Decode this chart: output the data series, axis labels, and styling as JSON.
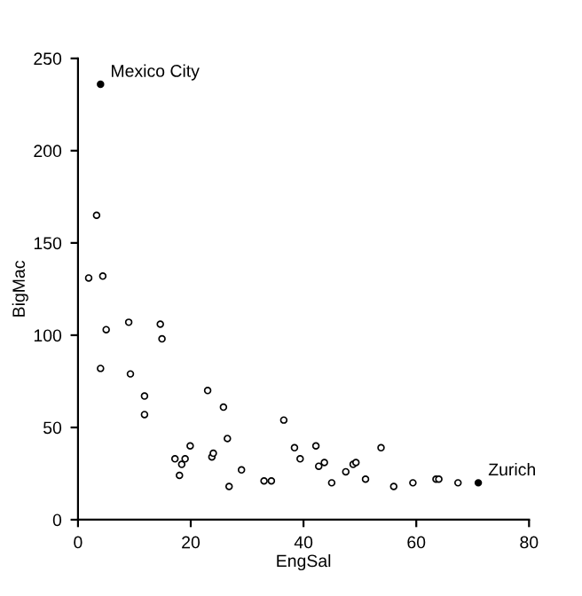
{
  "chart_data": {
    "type": "scatter",
    "xlabel": "EngSal",
    "ylabel": "BigMac",
    "xlim": [
      0,
      80
    ],
    "ylim": [
      0,
      250
    ],
    "xticks": [
      0,
      20,
      40,
      60,
      80
    ],
    "yticks": [
      0,
      50,
      100,
      150,
      200,
      250
    ],
    "grid": false,
    "legend": false,
    "marker": "circle",
    "series": [
      {
        "color": "#000000",
        "x": [
          3.3,
          1.9,
          4.4,
          5,
          9,
          14.6,
          14.9,
          4,
          9.3,
          11.8,
          11.8,
          23,
          25.8,
          26.5,
          19.9,
          17.2,
          19,
          18.4,
          18,
          23.75,
          24,
          29,
          26.8,
          33,
          34.3,
          36.5,
          38.4,
          39.4,
          42.2,
          42.7,
          43.7,
          45,
          47.5,
          48.8,
          49.3,
          51,
          53.75,
          56,
          59.4,
          63.5,
          64,
          67.4
        ],
        "values": [
          165,
          131,
          132,
          103,
          107,
          106,
          98,
          82,
          79,
          67,
          57,
          70,
          61,
          44,
          40,
          33,
          33,
          30,
          24,
          34,
          36,
          27,
          18,
          21,
          21,
          54,
          39,
          33,
          40,
          29,
          31,
          20,
          26,
          30,
          31,
          22,
          39,
          18,
          20,
          22,
          22,
          20
        ]
      },
      {
        "color": "#000000",
        "x": [
          4,
          71
        ],
        "values": [
          236,
          20
        ]
      }
    ],
    "annotations": [
      {
        "text": "Mexico City",
        "x": 4,
        "y": 236
      },
      {
        "text": "Zurich",
        "x": 71,
        "y": 20
      }
    ]
  }
}
